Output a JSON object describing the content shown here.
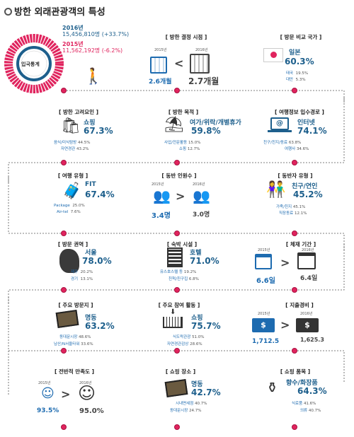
{
  "title": "방한 외래관광객의 특성",
  "arrivals": {
    "y2016": "2016년",
    "v2016": "15,456,810명 (+33.7%)",
    "y2015": "2015년",
    "v2015": "11,562,192명 (-6.2%)",
    "center": "입국통계"
  },
  "decision": {
    "head": "[ 방한 결정 시점 ]",
    "y1": "2015년",
    "y2": "2016년",
    "v1": "2.6개월",
    "v2": "2.7개월"
  },
  "country": {
    "head": "[ 방문 비교 국가 ]",
    "main": "일본",
    "pct": "60.3%",
    "r1": "태국",
    "r1v": "19.5%",
    "r2": "대만",
    "r2v": "5.3%"
  },
  "factor": {
    "head": "[ 방한 고려요인 ]",
    "main": "쇼핑",
    "pct": "67.3%",
    "r1": "음식/미식탐방",
    "r1v": "44.5%",
    "r2": "자연경관",
    "r2v": "43.2%"
  },
  "purpose": {
    "head": "[ 방한 목적 ]",
    "main": "여가/위락/개별휴가",
    "pct": "59.8%",
    "r1": "사업/전문활동",
    "r1v": "15.0%",
    "r2": "쇼핑",
    "r2v": "12.7%"
  },
  "info": {
    "head": "[ 여행정보 입수경로 ]",
    "main": "인터넷",
    "pct": "74.1%",
    "r1": "친구/친지/동료",
    "r1v": "63.8%",
    "r2": "여행사",
    "r2v": "34.6%"
  },
  "type": {
    "head": "[ 여행 유형 ]",
    "main": "FIT",
    "pct": "67.4%",
    "r1": "Package",
    "r1v": "25.0%",
    "r2": "Air-tel",
    "r2v": "7.6%"
  },
  "companions": {
    "head": "[ 동반 인원수 ]",
    "y1": "2015년",
    "y2": "2016년",
    "v1": "3.4명",
    "v2": "3.0명"
  },
  "companion_type": {
    "head": "[ 동반자 유형 ]",
    "main": "친구/연인",
    "pct": "45.2%",
    "r1": "가족/친지",
    "r1v": "45.1%",
    "r2": "직장동료",
    "r2v": "12.1%"
  },
  "region": {
    "head": "[ 방문 권역 ]",
    "main": "서울",
    "pct": "78.0%",
    "r1": "제주",
    "r1v": "20.2%",
    "r2": "경기",
    "r2v": "13.1%"
  },
  "lodging": {
    "head": "[ 숙박 시설 ]",
    "main": "호텔",
    "pct": "71.0%",
    "r1": "유스호스텔 등",
    "r1v": "19.2%",
    "r2": "친척/친구집",
    "r2v": "6.8%"
  },
  "stay": {
    "head": "[ 체재 기간 ]",
    "y1": "2015년",
    "y2": "2016년",
    "v1": "6.6일",
    "v2": "6.4일"
  },
  "place": {
    "head": "[ 주요 방문지 ]",
    "main": "명동",
    "pct": "63.2%",
    "r1": "동대문시장",
    "r1v": "48.6%",
    "r2": "남산/N서울타워",
    "r2v": "33.6%"
  },
  "activity": {
    "head": "[ 주요 참여 활동 ]",
    "main": "쇼핑",
    "pct": "75.7%",
    "r1": "식도락관광",
    "r1v": "51.0%",
    "r2": "자연경관감상",
    "r2v": "28.6%"
  },
  "spend": {
    "head": "[ 지출경비 ]",
    "y1": "2015년",
    "y2": "2016년",
    "v1": "1,712.5",
    "v2": "1,625.3"
  },
  "satisfaction": {
    "head": "[ 전반적 만족도 ]",
    "y1": "2015년",
    "y2": "2016년",
    "v1": "93.5%",
    "v2": "95.0%"
  },
  "shop_place": {
    "head": "[ 쇼핑 장소 ]",
    "main": "명동",
    "pct": "42.7%",
    "r1": "시내면세점",
    "r1v": "40.7%",
    "r2": "동대문시장",
    "r2v": "24.7%"
  },
  "shop_item": {
    "head": "[ 쇼핑 품목 ]",
    "main": "향수/화장품",
    "pct": "64.3%",
    "r1": "식료품",
    "r1v": "41.6%",
    "r2": "의류",
    "r2v": "40.7%"
  },
  "colors": {
    "blue": "#1d5f8c",
    "pink": "#e0245e",
    "dark": "#444444"
  }
}
